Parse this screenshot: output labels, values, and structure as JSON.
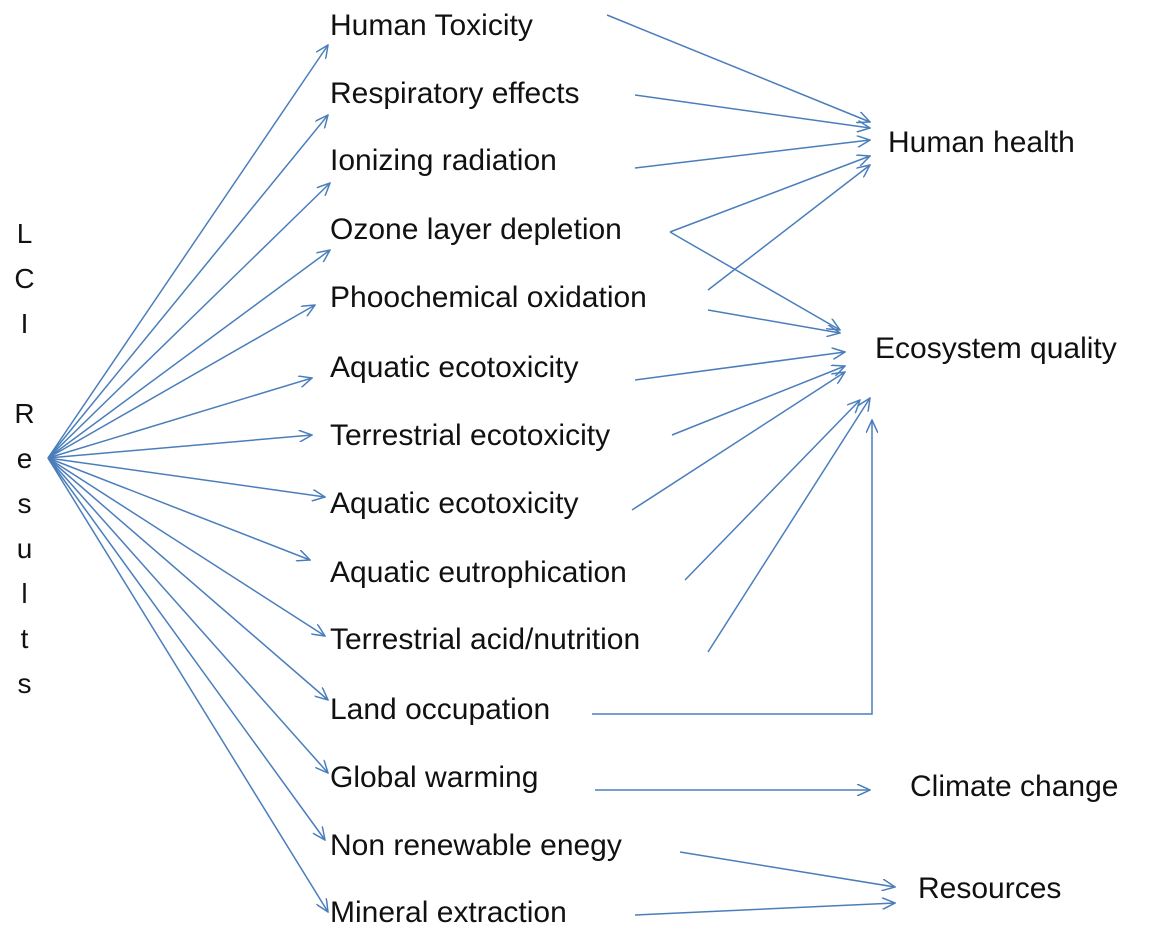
{
  "source": "LCI Results",
  "midpoints": [
    "Human Toxicity",
    "Respiratory effects",
    "Ionizing radiation",
    "Ozone layer depletion",
    "Phoochemical oxidation",
    "Aquatic ecotoxicity",
    "Terrestrial ecotoxicity",
    "Aquatic ecotoxicity",
    "Aquatic eutrophication",
    "Terrestrial acid/nutrition",
    "Land occupation",
    "Global warming",
    "Non renewable enegy",
    "Mineral extraction"
  ],
  "endpoints": [
    "Human health",
    "Ecosystem quality",
    "Climate change",
    "Resources"
  ]
}
